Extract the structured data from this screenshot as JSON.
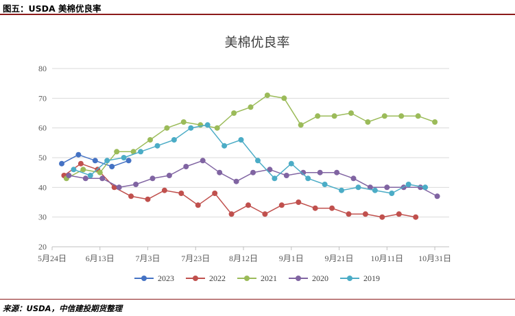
{
  "figure": {
    "caption": "图五：USDA 美棉优良率",
    "source": "来源：USDA，中信建投期货整理"
  },
  "colors": {
    "2023": "#4472C4",
    "2022": "#C0504D",
    "2021": "#9BBB59",
    "2020": "#8064A2",
    "2019": "#4BACC6",
    "gridline": "#d9d9d9",
    "rule": "#8b1a1a"
  },
  "chart_data": {
    "type": "line",
    "title": "美棉优良率",
    "xlabel": "",
    "ylabel": "",
    "x_type": "date",
    "xlim": [
      "05-24",
      "11-06"
    ],
    "ylim": [
      20,
      80
    ],
    "y_ticks": [
      20,
      30,
      40,
      50,
      60,
      70,
      80
    ],
    "x_ticks": [
      {
        "date": "05-24",
        "label": "5月24日"
      },
      {
        "date": "06-13",
        "label": "6月13日"
      },
      {
        "date": "07-03",
        "label": "7月3日"
      },
      {
        "date": "07-23",
        "label": "7月23日"
      },
      {
        "date": "08-12",
        "label": "8月12日"
      },
      {
        "date": "09-01",
        "label": "9月1日"
      },
      {
        "date": "09-21",
        "label": "9月21日"
      },
      {
        "date": "10-11",
        "label": "10月11日"
      },
      {
        "date": "10-31",
        "label": "10月31日"
      }
    ],
    "grid": {
      "horizontal": true,
      "vertical": false
    },
    "legend_position": "bottom",
    "series": [
      {
        "name": "2023",
        "color": "#4472C4",
        "points": [
          [
            "05-28",
            48
          ],
          [
            "06-04",
            51
          ],
          [
            "06-11",
            49
          ],
          [
            "06-18",
            47
          ],
          [
            "06-25",
            49
          ]
        ]
      },
      {
        "name": "2022",
        "color": "#C0504D",
        "points": [
          [
            "05-29",
            44
          ],
          [
            "06-05",
            48
          ],
          [
            "06-12",
            46
          ],
          [
            "06-19",
            40
          ],
          [
            "06-26",
            37
          ],
          [
            "07-03",
            36
          ],
          [
            "07-10",
            39
          ],
          [
            "07-17",
            38
          ],
          [
            "07-24",
            34
          ],
          [
            "07-31",
            38
          ],
          [
            "08-07",
            31
          ],
          [
            "08-14",
            34
          ],
          [
            "08-21",
            31
          ],
          [
            "08-28",
            34
          ],
          [
            "09-04",
            35
          ],
          [
            "09-11",
            33
          ],
          [
            "09-18",
            33
          ],
          [
            "09-25",
            31
          ],
          [
            "10-02",
            31
          ],
          [
            "10-09",
            30
          ],
          [
            "10-16",
            31
          ],
          [
            "10-23",
            30
          ]
        ]
      },
      {
        "name": "2021",
        "color": "#9BBB59",
        "points": [
          [
            "05-30",
            43
          ],
          [
            "06-06",
            46
          ],
          [
            "06-13",
            45
          ],
          [
            "06-20",
            52
          ],
          [
            "06-27",
            52
          ],
          [
            "07-04",
            56
          ],
          [
            "07-11",
            60
          ],
          [
            "07-18",
            62
          ],
          [
            "07-25",
            61
          ],
          [
            "08-01",
            60
          ],
          [
            "08-08",
            65
          ],
          [
            "08-15",
            67
          ],
          [
            "08-22",
            71
          ],
          [
            "08-29",
            70
          ],
          [
            "09-05",
            61
          ],
          [
            "09-12",
            64
          ],
          [
            "09-19",
            64
          ],
          [
            "09-26",
            65
          ],
          [
            "10-03",
            62
          ],
          [
            "10-10",
            64
          ],
          [
            "10-17",
            64
          ],
          [
            "10-24",
            64
          ],
          [
            "10-31",
            62
          ]
        ]
      },
      {
        "name": "2020",
        "color": "#8064A2",
        "points": [
          [
            "05-31",
            44
          ],
          [
            "06-07",
            43
          ],
          [
            "06-14",
            43
          ],
          [
            "06-21",
            40
          ],
          [
            "06-28",
            41
          ],
          [
            "07-05",
            43
          ],
          [
            "07-12",
            44
          ],
          [
            "07-19",
            47
          ],
          [
            "07-26",
            49
          ],
          [
            "08-02",
            45
          ],
          [
            "08-09",
            42
          ],
          [
            "08-16",
            45
          ],
          [
            "08-23",
            46
          ],
          [
            "08-30",
            44
          ],
          [
            "09-06",
            45
          ],
          [
            "09-13",
            45
          ],
          [
            "09-20",
            45
          ],
          [
            "09-27",
            43
          ],
          [
            "10-04",
            40
          ],
          [
            "10-11",
            40
          ],
          [
            "10-18",
            40
          ],
          [
            "10-25",
            40
          ],
          [
            "11-01",
            37
          ]
        ]
      },
      {
        "name": "2019",
        "color": "#4BACC6",
        "points": [
          [
            "06-02",
            46
          ],
          [
            "06-09",
            44
          ],
          [
            "06-16",
            49
          ],
          [
            "06-23",
            50
          ],
          [
            "06-30",
            52
          ],
          [
            "07-07",
            54
          ],
          [
            "07-14",
            56
          ],
          [
            "07-21",
            60
          ],
          [
            "07-28",
            61
          ],
          [
            "08-04",
            54
          ],
          [
            "08-11",
            56
          ],
          [
            "08-18",
            49
          ],
          [
            "08-25",
            43
          ],
          [
            "09-01",
            48
          ],
          [
            "09-08",
            43
          ],
          [
            "09-15",
            41
          ],
          [
            "09-22",
            39
          ],
          [
            "09-29",
            40
          ],
          [
            "10-06",
            39
          ],
          [
            "10-13",
            38
          ],
          [
            "10-20",
            41
          ],
          [
            "10-27",
            40
          ]
        ]
      }
    ]
  }
}
